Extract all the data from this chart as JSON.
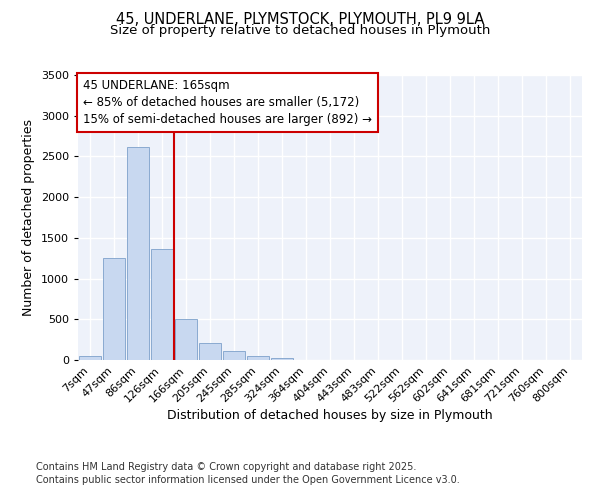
{
  "title_line1": "45, UNDERLANE, PLYMSTOCK, PLYMOUTH, PL9 9LA",
  "title_line2": "Size of property relative to detached houses in Plymouth",
  "xlabel": "Distribution of detached houses by size in Plymouth",
  "ylabel": "Number of detached properties",
  "categories": [
    "7sqm",
    "47sqm",
    "86sqm",
    "126sqm",
    "166sqm",
    "205sqm",
    "245sqm",
    "285sqm",
    "324sqm",
    "364sqm",
    "404sqm",
    "443sqm",
    "483sqm",
    "522sqm",
    "562sqm",
    "602sqm",
    "641sqm",
    "681sqm",
    "721sqm",
    "760sqm",
    "800sqm"
  ],
  "values": [
    55,
    1250,
    2610,
    1360,
    500,
    210,
    110,
    55,
    30,
    5,
    5,
    0,
    0,
    0,
    0,
    0,
    0,
    0,
    0,
    0,
    0
  ],
  "bar_color": "#c8d8f0",
  "bar_edge_color": "#8aaad0",
  "vline_x_index": 4,
  "vline_color": "#cc0000",
  "annotation_box_text": "45 UNDERLANE: 165sqm\n← 85% of detached houses are smaller (5,172)\n15% of semi-detached houses are larger (892) →",
  "box_edge_color": "#cc0000",
  "ylim": [
    0,
    3500
  ],
  "yticks": [
    0,
    500,
    1000,
    1500,
    2000,
    2500,
    3000,
    3500
  ],
  "background_color": "#eef2fa",
  "grid_color": "#ffffff",
  "footer_line1": "Contains HM Land Registry data © Crown copyright and database right 2025.",
  "footer_line2": "Contains public sector information licensed under the Open Government Licence v3.0.",
  "title_fontsize": 10.5,
  "subtitle_fontsize": 9.5,
  "label_fontsize": 9,
  "tick_fontsize": 8,
  "annotation_fontsize": 8.5,
  "footer_fontsize": 7
}
